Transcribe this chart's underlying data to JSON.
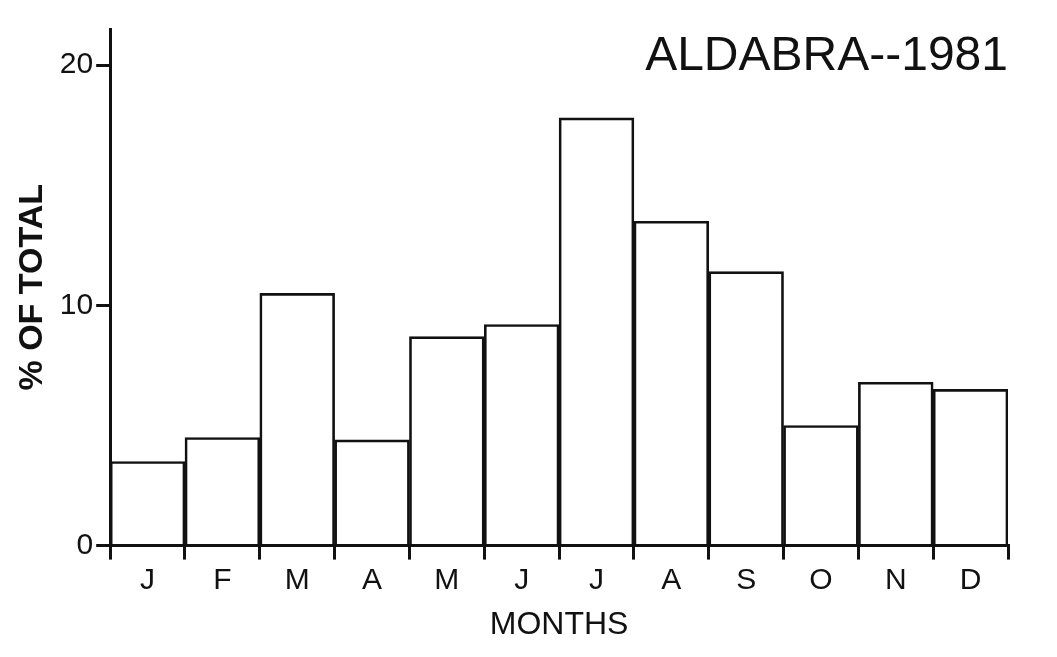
{
  "chart_data": {
    "type": "bar",
    "title": "ALDABRA--1981",
    "xlabel": "MONTHS",
    "ylabel": "% OF TOTAL",
    "categories": [
      "J",
      "F",
      "M",
      "A",
      "M",
      "J",
      "J",
      "A",
      "S",
      "O",
      "N",
      "D"
    ],
    "values": [
      3.5,
      4.5,
      10.5,
      4.4,
      8.7,
      9.2,
      17.8,
      13.5,
      11.4,
      5.0,
      6.8,
      6.5
    ],
    "color": "#111111",
    "ylim": [
      0,
      21.5
    ],
    "yticks": [
      0,
      10,
      20
    ],
    "grid": false,
    "legend": false
  }
}
